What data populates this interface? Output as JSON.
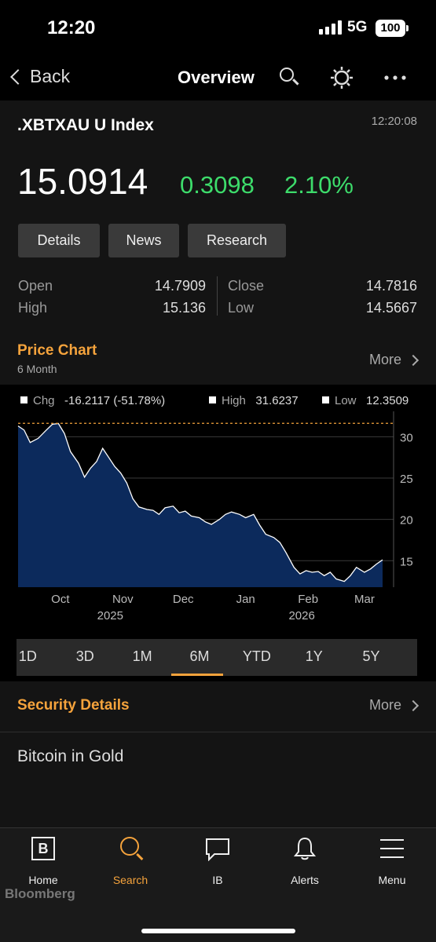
{
  "status_bar": {
    "time": "12:20",
    "network": "5G",
    "battery": "100"
  },
  "nav": {
    "back_label": "Back",
    "title": "Overview",
    "icons": [
      "search-icon",
      "gear-icon",
      "more-icon"
    ]
  },
  "quote": {
    "ticker": ".XBTXAU U Index",
    "time": "12:20:08",
    "last": "15.0914",
    "net_change": "0.3098",
    "pct_change": "2.10%",
    "positive_color": "#3ddc6b"
  },
  "tabs": {
    "details": "Details",
    "news": "News",
    "research": "Research"
  },
  "stats": {
    "open_label": "Open",
    "open": "14.7909",
    "high_label": "High",
    "high": "15.136",
    "close_label": "Close",
    "close": "14.7816",
    "low_label": "Low",
    "low": "14.5667"
  },
  "price_chart": {
    "title": "Price Chart",
    "subtitle": "6 Month",
    "more_label": "More"
  },
  "legend": {
    "chg_label": "Chg",
    "chg": "-16.2117 (-51.78%)",
    "high_label": "High",
    "high": "31.6237",
    "low_label": "Low",
    "low": "12.3509"
  },
  "chart_data": {
    "type": "area",
    "x": [
      "2025-09-10",
      "2025-09-13",
      "2025-09-16",
      "2025-09-20",
      "2025-09-24",
      "2025-09-27",
      "2025-09-30",
      "2025-10-03",
      "2025-10-06",
      "2025-10-10",
      "2025-10-13",
      "2025-10-16",
      "2025-10-19",
      "2025-10-22",
      "2025-10-25",
      "2025-10-28",
      "2025-10-31",
      "2025-11-03",
      "2025-11-06",
      "2025-11-09",
      "2025-11-13",
      "2025-11-16",
      "2025-11-19",
      "2025-11-22",
      "2025-11-26",
      "2025-11-29",
      "2025-12-02",
      "2025-12-05",
      "2025-12-09",
      "2025-12-12",
      "2025-12-15",
      "2025-12-19",
      "2025-12-22",
      "2025-12-25",
      "2025-12-29",
      "2026-01-01",
      "2026-01-05",
      "2026-01-08",
      "2026-01-11",
      "2026-01-15",
      "2026-01-18",
      "2026-01-21",
      "2026-01-25",
      "2026-01-28",
      "2026-01-31",
      "2026-02-03",
      "2026-02-06",
      "2026-02-09",
      "2026-02-12",
      "2026-02-15",
      "2026-02-19",
      "2026-02-22",
      "2026-02-25",
      "2026-03-01",
      "2026-03-04",
      "2026-03-07",
      "2026-03-10"
    ],
    "series": [
      {
        "values": [
          31.3,
          30.8,
          29.3,
          29.8,
          30.8,
          31.5,
          31.6,
          30.4,
          28.2,
          26.8,
          25.1,
          26.2,
          27.0,
          28.6,
          27.5,
          26.4,
          25.6,
          24.4,
          22.5,
          21.5,
          21.2,
          21.1,
          20.6,
          21.4,
          21.6,
          20.8,
          21.0,
          20.4,
          20.2,
          19.7,
          19.4,
          20.0,
          20.6,
          20.9,
          20.6,
          20.2,
          20.6,
          19.3,
          18.2,
          17.8,
          17.2,
          16.0,
          14.2,
          13.4,
          13.8,
          13.6,
          13.7,
          13.2,
          13.6,
          12.8,
          12.5,
          13.2,
          14.2,
          13.6,
          14.0,
          14.6,
          15.1
        ]
      }
    ],
    "x_ticks": [
      "Oct",
      "Nov",
      "Dec",
      "Jan",
      "Feb",
      "Mar"
    ],
    "x_sub_ticks": [
      "2025",
      "2026"
    ],
    "y_ticks": [
      15,
      20,
      25,
      30
    ],
    "ylim": [
      11.8,
      32.5
    ],
    "high_line": 31.6237,
    "fill_color": "#0c2a5c",
    "line_color": "#ffffff",
    "high_line_color": "#f5a33c",
    "grid": true
  },
  "ranges": {
    "items": [
      "1D",
      "3D",
      "1M",
      "6M",
      "YTD",
      "1Y",
      "5Y"
    ],
    "active": "6M"
  },
  "security": {
    "title": "Security Details",
    "more_label": "More",
    "description": "Bitcoin in Gold"
  },
  "tab_bar": {
    "home": "Home",
    "search": "Search",
    "ib": "IB",
    "alerts": "Alerts",
    "menu": "Menu",
    "brand": "Bloomberg",
    "accent": "#f5a33c"
  }
}
